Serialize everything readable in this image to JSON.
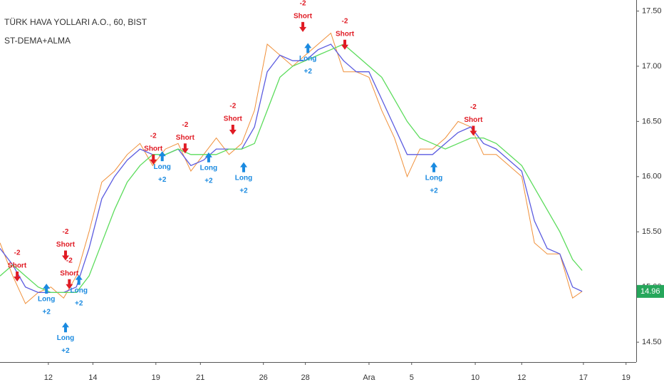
{
  "chart_data": {
    "type": "line",
    "title": "TÜRK HAVA YOLLARI A.O., 60, BIST",
    "subtitle": "ST-DEMA+ALMA",
    "x": [
      0,
      2,
      4,
      6,
      8,
      10,
      12,
      14,
      16,
      18,
      20,
      22,
      24,
      26,
      28,
      30,
      32,
      34,
      36,
      38,
      40,
      42,
      44,
      46,
      48,
      50,
      52,
      54,
      56,
      58,
      60,
      62,
      64,
      66,
      68,
      70,
      72,
      74,
      76,
      78,
      80,
      82,
      84,
      86,
      88,
      90,
      91.5
    ],
    "series": [
      {
        "name": "Close",
        "color": "#f0903a",
        "values": [
          15.4,
          15.1,
          14.85,
          14.95,
          15.0,
          14.9,
          15.1,
          15.5,
          15.95,
          16.05,
          16.2,
          16.3,
          16.1,
          16.25,
          16.3,
          16.05,
          16.2,
          16.35,
          16.2,
          16.3,
          16.6,
          17.2,
          17.1,
          17.0,
          17.1,
          17.2,
          17.3,
          16.95,
          16.95,
          16.9,
          16.6,
          16.35,
          16.0,
          16.25,
          16.25,
          16.35,
          16.5,
          16.45,
          16.2,
          16.2,
          16.1,
          16.0,
          15.4,
          15.3,
          15.3,
          14.9,
          14.96
        ]
      },
      {
        "name": "DEMA",
        "color": "#5c5ce0",
        "values": [
          15.35,
          15.2,
          15.0,
          14.95,
          14.95,
          14.95,
          15.0,
          15.35,
          15.8,
          16.0,
          16.15,
          16.25,
          16.2,
          16.2,
          16.25,
          16.1,
          16.15,
          16.25,
          16.25,
          16.25,
          16.45,
          16.95,
          17.1,
          17.05,
          17.05,
          17.15,
          17.2,
          17.05,
          16.95,
          16.95,
          16.7,
          16.45,
          16.2,
          16.2,
          16.2,
          16.3,
          16.4,
          16.45,
          16.3,
          16.25,
          16.15,
          16.05,
          15.6,
          15.35,
          15.3,
          15.0,
          14.96
        ]
      },
      {
        "name": "ALMA",
        "color": "#5cdc5c",
        "values": [
          15.1,
          15.2,
          15.1,
          15.0,
          14.95,
          14.95,
          14.95,
          15.1,
          15.4,
          15.7,
          15.95,
          16.1,
          16.2,
          16.2,
          16.25,
          16.2,
          16.2,
          16.2,
          16.25,
          16.25,
          16.3,
          16.6,
          16.9,
          17.0,
          17.05,
          17.1,
          17.15,
          17.2,
          17.1,
          17.0,
          16.9,
          16.7,
          16.5,
          16.35,
          16.3,
          16.25,
          16.3,
          16.35,
          16.35,
          16.3,
          16.2,
          16.1,
          15.9,
          15.7,
          15.5,
          15.25,
          15.15
        ]
      }
    ],
    "signals": [
      {
        "text": "Short",
        "label": "-2",
        "x": 2.7,
        "price": 15.05,
        "color": "#e01b24"
      },
      {
        "text": "Short",
        "label": "-2",
        "x": 10.3,
        "price": 15.24,
        "color": "#e01b24"
      },
      {
        "text": "Short",
        "label": "-2",
        "x": 10.9,
        "price": 14.98,
        "color": "#e01b24"
      },
      {
        "text": "Short",
        "label": "-2",
        "x": 24.1,
        "price": 16.11,
        "color": "#e01b24"
      },
      {
        "text": "Short",
        "label": "-2",
        "x": 29.1,
        "price": 16.21,
        "color": "#e01b24"
      },
      {
        "text": "Short",
        "label": "-2",
        "x": 36.6,
        "price": 16.38,
        "color": "#e01b24"
      },
      {
        "text": "Short",
        "label": "-2",
        "x": 47.6,
        "price": 17.31,
        "color": "#e01b24"
      },
      {
        "text": "Short",
        "label": "-2",
        "x": 54.2,
        "price": 17.15,
        "color": "#e01b24"
      },
      {
        "text": "Short",
        "label": "-2",
        "x": 74.4,
        "price": 16.37,
        "color": "#e01b24"
      },
      {
        "text": "Long",
        "label": "+2",
        "x": 7.3,
        "price": 15.03,
        "color": "#1a8ae0"
      },
      {
        "text": "Long",
        "label": "+2",
        "x": 10.3,
        "price": 14.68,
        "color": "#1a8ae0"
      },
      {
        "text": "Long",
        "label": "+2",
        "x": 12.4,
        "price": 15.11,
        "color": "#1a8ae0"
      },
      {
        "text": "Long",
        "label": "+2",
        "x": 25.5,
        "price": 16.23,
        "color": "#1a8ae0"
      },
      {
        "text": "Long",
        "label": "+2",
        "x": 32.8,
        "price": 16.22,
        "color": "#1a8ae0"
      },
      {
        "text": "Long",
        "label": "+2",
        "x": 38.3,
        "price": 16.13,
        "color": "#1a8ae0"
      },
      {
        "text": "Long",
        "label": "+2",
        "x": 48.4,
        "price": 17.21,
        "color": "#1a8ae0"
      },
      {
        "text": "Long",
        "label": "+2",
        "x": 68.2,
        "price": 16.13,
        "color": "#1a8ae0"
      }
    ],
    "last_price": 14.96,
    "last_price_color": "#26a65b",
    "xlim": [
      0,
      100
    ],
    "xticks": [
      {
        "value": 7.6,
        "label": "12"
      },
      {
        "value": 14.6,
        "label": "14"
      },
      {
        "value": 24.5,
        "label": "19"
      },
      {
        "value": 31.5,
        "label": "21"
      },
      {
        "value": 41.4,
        "label": "26"
      },
      {
        "value": 48.0,
        "label": "28"
      },
      {
        "value": 58.0,
        "label": "Ara"
      },
      {
        "value": 64.7,
        "label": "5"
      },
      {
        "value": 74.7,
        "label": "10"
      },
      {
        "value": 82.0,
        "label": "12"
      },
      {
        "value": 91.7,
        "label": "17"
      },
      {
        "value": 98.4,
        "label": "19"
      }
    ],
    "ylim": [
      14.32,
      17.6
    ],
    "yticks": [
      {
        "value": 14.5,
        "label": "14.50"
      },
      {
        "value": 15.0,
        "label": "15.00"
      },
      {
        "value": 15.5,
        "label": "15.50"
      },
      {
        "value": 16.0,
        "label": "16.00"
      },
      {
        "value": 16.5,
        "label": "16.50"
      },
      {
        "value": 17.0,
        "label": "17.00"
      },
      {
        "value": 17.5,
        "label": "17.50"
      }
    ],
    "grid": false
  }
}
